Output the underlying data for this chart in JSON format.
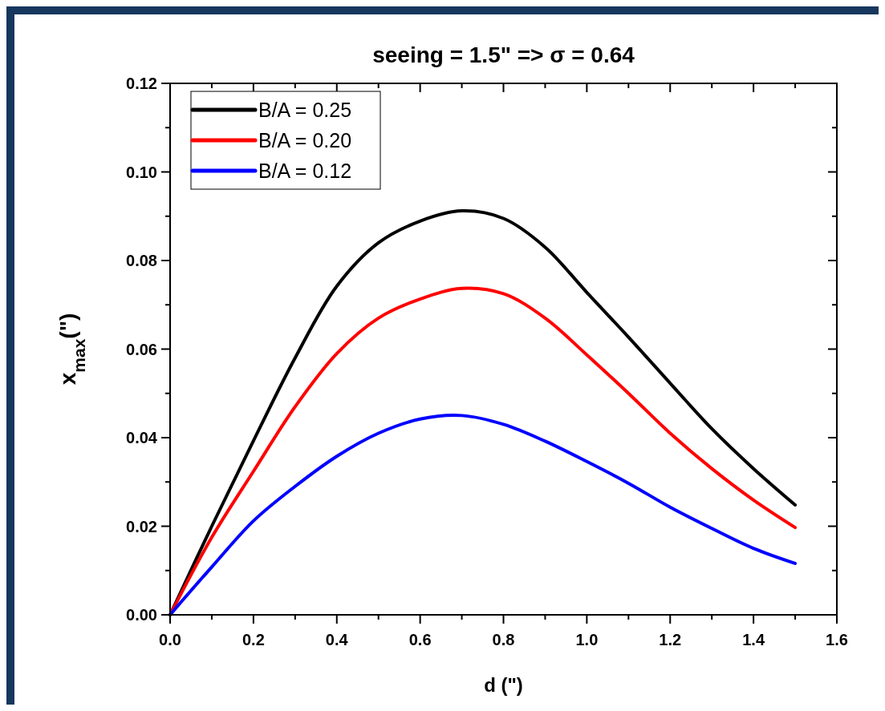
{
  "chart_data": {
    "type": "line",
    "title": "seeing = 1.5\"  =>  σ = 0.64",
    "xlabel": "d (\")",
    "ylabel": "x$_{max}$(\")",
    "x": [
      0,
      0.1,
      0.2,
      0.3,
      0.4,
      0.5,
      0.6,
      0.7,
      0.8,
      0.9,
      1.0,
      1.1,
      1.2,
      1.3,
      1.4,
      1.5
    ],
    "series": [
      {
        "name": "B/A = 0.25",
        "color": "#000000",
        "values": [
          0,
          0.02,
          0.0393,
          0.058,
          0.0742,
          0.084,
          0.0889,
          0.0912,
          0.0895,
          0.083,
          0.0728,
          0.0627,
          0.0523,
          0.042,
          0.033,
          0.0248
        ]
      },
      {
        "name": "B/A = 0.20",
        "color": "#ff0000",
        "values": [
          0,
          0.0175,
          0.0324,
          0.047,
          0.059,
          0.067,
          0.0713,
          0.0737,
          0.0725,
          0.067,
          0.0587,
          0.05,
          0.041,
          0.033,
          0.0259,
          0.0197
        ]
      },
      {
        "name": "B/A = 0.12",
        "color": "#0000ff",
        "values": [
          0,
          0.0108,
          0.0212,
          0.029,
          0.0358,
          0.041,
          0.0442,
          0.045,
          0.043,
          0.0392,
          0.0346,
          0.0297,
          0.0243,
          0.0195,
          0.015,
          0.0116
        ]
      }
    ],
    "xlim": [
      0,
      1.6
    ],
    "xticks": [
      {
        "value": 0,
        "label": "0.0"
      },
      {
        "value": 0.1,
        "label": null
      },
      {
        "value": 0.2,
        "label": "0.2"
      },
      {
        "value": 0.3,
        "label": null
      },
      {
        "value": 0.4,
        "label": "0.4"
      },
      {
        "value": 0.5,
        "label": null
      },
      {
        "value": 0.6,
        "label": "0.6"
      },
      {
        "value": 0.7,
        "label": null
      },
      {
        "value": 0.8,
        "label": "0.8"
      },
      {
        "value": 0.9,
        "label": null
      },
      {
        "value": 1.0,
        "label": "1.0"
      },
      {
        "value": 1.1,
        "label": null
      },
      {
        "value": 1.2,
        "label": "1.2"
      },
      {
        "value": 1.3,
        "label": null
      },
      {
        "value": 1.4,
        "label": "1.4"
      },
      {
        "value": 1.5,
        "label": null
      },
      {
        "value": 1.6,
        "label": "1.6"
      }
    ],
    "ylim": [
      0,
      0.12
    ],
    "yticks": [
      {
        "value": 0,
        "label": "0.00"
      },
      {
        "value": 0.01,
        "label": null
      },
      {
        "value": 0.02,
        "label": "0.02"
      },
      {
        "value": 0.03,
        "label": null
      },
      {
        "value": 0.04,
        "label": "0.04"
      },
      {
        "value": 0.05,
        "label": null
      },
      {
        "value": 0.06,
        "label": "0.06"
      },
      {
        "value": 0.07,
        "label": null
      },
      {
        "value": 0.08,
        "label": "0.08"
      },
      {
        "value": 0.09,
        "label": null
      },
      {
        "value": 0.1,
        "label": "0.10"
      },
      {
        "value": 0.11,
        "label": null
      },
      {
        "value": 0.12,
        "label": "0.12"
      }
    ],
    "legend": "top left",
    "grid": false,
    "line_style": "solid"
  }
}
